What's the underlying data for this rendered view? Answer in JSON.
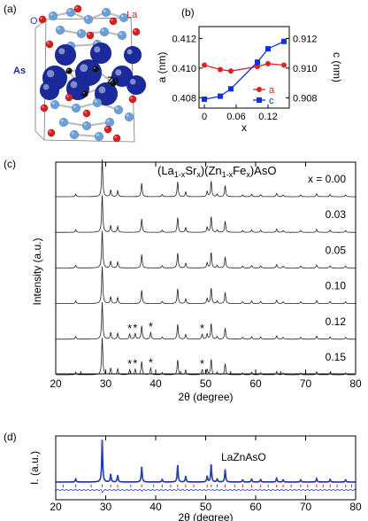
{
  "panel_labels": {
    "a": "(a)",
    "b": "(b)",
    "c": "(c)",
    "d": "(d)"
  },
  "crystal": {
    "atom_labels": {
      "la": "La",
      "o": "O",
      "as": "As",
      "zn": "Zn"
    },
    "colors": {
      "la": "#d42020",
      "o": "#6aa0d8",
      "as": "#1a2a9a",
      "zn": "#111111",
      "bond": "#bfbfbf"
    }
  },
  "chart_data": [
    {
      "type": "line",
      "panel": "b",
      "xlabel": "x",
      "ylabel_left": "a (nm)",
      "ylabel_right": "c (nm)",
      "x_ticks": [
        "0",
        "0.06",
        "0.12"
      ],
      "x_tick_values": [
        0,
        0.06,
        0.12
      ],
      "y_left_ticks": [
        "0.408",
        "0.410",
        "0.412"
      ],
      "y_left_tick_values": [
        0.408,
        0.41,
        0.412
      ],
      "y_right_ticks": [
        "0.908",
        "0.910",
        "0.912"
      ],
      "y_right_tick_values": [
        0.908,
        0.91,
        0.912
      ],
      "xlim": [
        -0.01,
        0.16
      ],
      "ylim_left": [
        0.4073,
        0.4128
      ],
      "ylim_right": [
        0.9073,
        0.9128
      ],
      "grid": false,
      "legend_position": "bottom-right",
      "series": [
        {
          "name": "a",
          "axis": "left",
          "color": "#e02020",
          "marker": "circle",
          "x": [
            0,
            0.03,
            0.05,
            0.1,
            0.12,
            0.15
          ],
          "y": [
            0.4102,
            0.4099,
            0.4098,
            0.4101,
            0.4103,
            0.4102
          ]
        },
        {
          "name": "c",
          "axis": "right",
          "color": "#1030e0",
          "marker": "square",
          "x": [
            0,
            0.03,
            0.05,
            0.1,
            0.12,
            0.15
          ],
          "y": [
            0.9079,
            0.9081,
            0.9086,
            0.9104,
            0.9113,
            0.9118
          ]
        }
      ]
    },
    {
      "type": "line",
      "panel": "c",
      "title": "(La1-xSrx)(Zn1-xFex)AsO",
      "xlabel": "2θ (degree)",
      "ylabel": "Intensity (a.u.)",
      "xlim": [
        20,
        80
      ],
      "x_ticks": [
        "20",
        "30",
        "40",
        "50",
        "60",
        "70",
        "80"
      ],
      "x_tick_values": [
        20,
        30,
        40,
        50,
        60,
        70,
        80
      ],
      "peaks": [
        {
          "pos": 24.0,
          "h": 0.07
        },
        {
          "pos": 29.3,
          "h": 1.0
        },
        {
          "pos": 31.0,
          "h": 0.18
        },
        {
          "pos": 32.4,
          "h": 0.16
        },
        {
          "pos": 37.2,
          "h": 0.36
        },
        {
          "pos": 41.3,
          "h": 0.06
        },
        {
          "pos": 44.4,
          "h": 0.4
        },
        {
          "pos": 46.0,
          "h": 0.13
        },
        {
          "pos": 50.3,
          "h": 0.14
        },
        {
          "pos": 51.1,
          "h": 0.42
        },
        {
          "pos": 52.3,
          "h": 0.07
        },
        {
          "pos": 53.9,
          "h": 0.3
        },
        {
          "pos": 57.4,
          "h": 0.05
        },
        {
          "pos": 59.2,
          "h": 0.07
        },
        {
          "pos": 61.0,
          "h": 0.06
        },
        {
          "pos": 64.2,
          "h": 0.09
        },
        {
          "pos": 65.5,
          "h": 0.05
        },
        {
          "pos": 69.0,
          "h": 0.05
        },
        {
          "pos": 72.2,
          "h": 0.08
        },
        {
          "pos": 74.9,
          "h": 0.06
        },
        {
          "pos": 78.0,
          "h": 0.05
        }
      ],
      "impurity_marker": "*",
      "impurity_peaks": [
        {
          "pos": 34.8,
          "h": 0.14
        },
        {
          "pos": 35.9,
          "h": 0.15
        },
        {
          "pos": 39.0,
          "h": 0.18
        },
        {
          "pos": 49.3,
          "h": 0.14
        }
      ],
      "series": [
        {
          "label": "x = 0.00",
          "x": 0.0,
          "impurities": false
        },
        {
          "label": "0.03",
          "x": 0.03,
          "impurities": false
        },
        {
          "label": "0.05",
          "x": 0.05,
          "impurities": false
        },
        {
          "label": "0.10",
          "x": 0.1,
          "impurities": false
        },
        {
          "label": "0.12",
          "x": 0.12,
          "impurities": true
        },
        {
          "label": "0.15",
          "x": 0.15,
          "impurities": true
        }
      ]
    },
    {
      "type": "line",
      "panel": "d",
      "title": "LaZnAsO",
      "xlabel": "2θ (degree)",
      "ylabel": "I. (a.u.)",
      "xlim": [
        20,
        80
      ],
      "x_ticks": [
        "20",
        "30",
        "40",
        "50",
        "60",
        "70",
        "80"
      ],
      "x_tick_values": [
        20,
        30,
        40,
        50,
        60,
        70,
        80
      ],
      "colors": {
        "observed": "#1a237e",
        "calculated": "#3050e0",
        "bragg": "#e02020",
        "difference": "#2030c0"
      },
      "bragg_positions": [
        21.5,
        24.0,
        27.1,
        29.3,
        31.0,
        32.4,
        35.0,
        37.2,
        39.6,
        41.3,
        43.0,
        44.4,
        46.0,
        47.6,
        50.3,
        51.1,
        52.3,
        53.9,
        55.8,
        57.4,
        59.2,
        61.0,
        62.5,
        64.2,
        65.5,
        67.1,
        69.0,
        70.4,
        72.2,
        73.5,
        74.9,
        76.3,
        78.0,
        79.2
      ]
    }
  ]
}
